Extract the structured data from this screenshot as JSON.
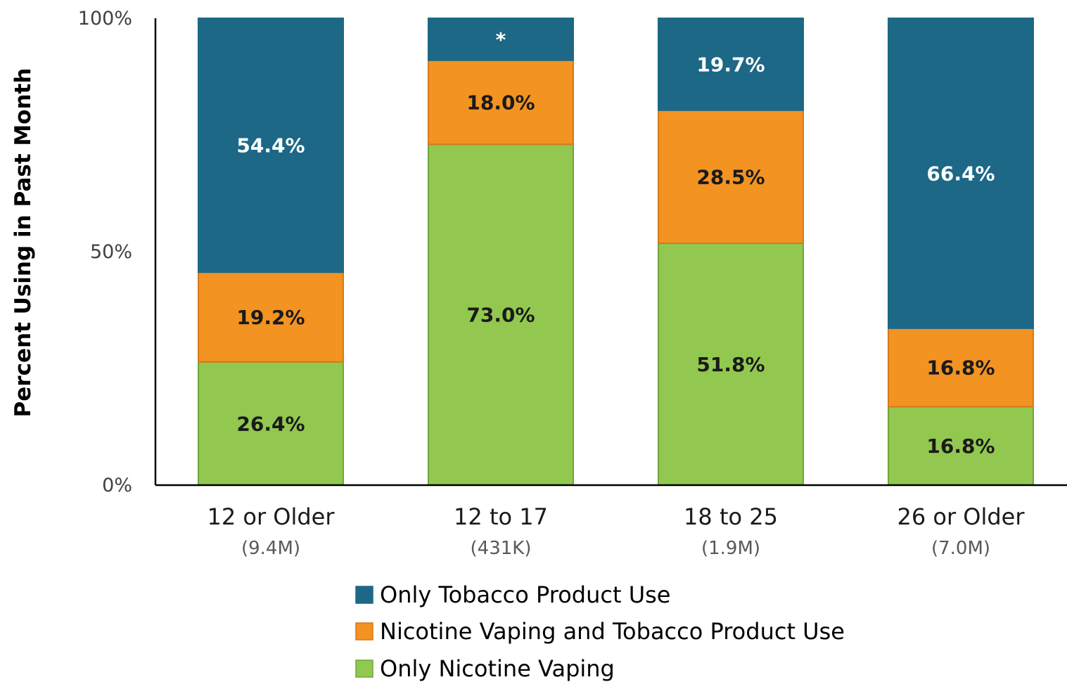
{
  "chart_data": {
    "type": "bar",
    "stacked": true,
    "title": "",
    "xlabel": "",
    "ylabel": "Percent Using in Past Month",
    "ylim": [
      0,
      100
    ],
    "y_ticks": [
      "0%",
      "50%",
      "100%"
    ],
    "y_tick_values": [
      0,
      50,
      100
    ],
    "grid": false,
    "legend_position": "bottom",
    "categories": [
      "12 or Older",
      "12 to 17",
      "18 to 25",
      "26 or Older"
    ],
    "category_sublabels": [
      "(9.4M)",
      "(431K)",
      "(1.9M)",
      "(7.0M)"
    ],
    "series": [
      {
        "name": "Only Nicotine Vaping",
        "color": "#92C84F",
        "border": "#6EA53B",
        "label_color": "#1a1a1a",
        "values": [
          26.4,
          73.0,
          51.8,
          16.8
        ],
        "labels": [
          "26.4%",
          "73.0%",
          "51.8%",
          "16.8%"
        ]
      },
      {
        "name": "Nicotine Vaping and Tobacco Product Use",
        "color": "#F29322",
        "border": "#D8781A",
        "label_color": "#1a1a1a",
        "values": [
          19.2,
          18.0,
          28.5,
          16.8
        ],
        "labels": [
          "19.2%",
          "18.0%",
          "28.5%",
          "16.8%"
        ]
      },
      {
        "name": "Only Tobacco Product Use",
        "color": "#1C6886",
        "border": "#1C6886",
        "label_color": "#ffffff",
        "values": [
          54.4,
          9.0,
          19.7,
          66.4
        ],
        "labels": [
          "54.4%",
          "*",
          "19.7%",
          "66.4%"
        ]
      }
    ],
    "legend_order": [
      "Only Tobacco Product Use",
      "Nicotine Vaping and Tobacco Product Use",
      "Only Nicotine Vaping"
    ]
  }
}
